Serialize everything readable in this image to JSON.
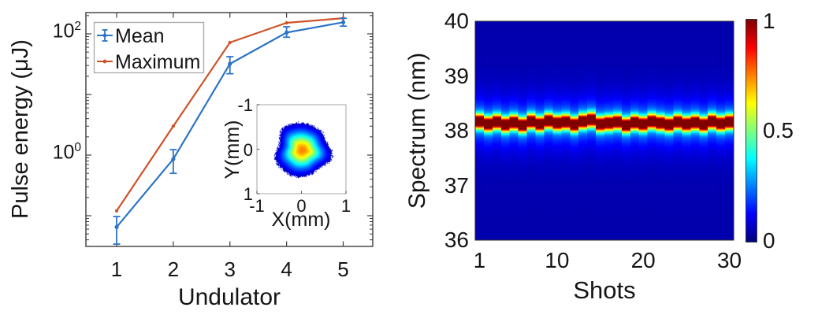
{
  "page": {
    "background": "#ffffff"
  },
  "left_plot": {
    "xlabel": "Undulator",
    "ylabel": "Pulse energy (μJ)",
    "axis_color": "#3c3c3c",
    "legend": {
      "border_color": "#a8a8a8"
    }
  },
  "inset_plot": {
    "xlabel": "X(mm)",
    "ylabel": "Y(mm)",
    "frame_color": "#b3b3b3"
  },
  "right_plot": {
    "xlabel": "Shots",
    "ylabel": "Spectrum (nm)"
  },
  "chart_data": [
    {
      "id": "pulse-energy-vs-undulator",
      "type": "line",
      "xlabel": "Undulator",
      "ylabel": "Pulse energy (μJ)",
      "yscale": "log",
      "xlim": [
        0.46,
        5.52
      ],
      "ylim": [
        0.031,
        224
      ],
      "x": [
        1,
        2,
        3,
        4,
        5
      ],
      "x_ticks": [
        "1",
        "2",
        "3",
        "4",
        "5"
      ],
      "y_major_ticks_labeled": [
        {
          "base": "10",
          "exp": "0",
          "value": 1
        },
        {
          "base": "10",
          "exp": "2",
          "value": 100
        }
      ],
      "grid": false,
      "legend_position": "top-left",
      "series": [
        {
          "name": "Maximum",
          "color": "#CE5328",
          "marker": "dot",
          "values": [
            0.12,
            3.0,
            72,
            152,
            181
          ]
        },
        {
          "name": "Mean",
          "color": "#2E74C4",
          "marker": "errorbar-dot",
          "values": [
            0.065,
            0.86,
            32,
            105,
            155
          ],
          "err_lo": [
            0.034,
            0.5,
            22,
            88,
            134
          ],
          "err_hi": [
            0.097,
            1.23,
            42,
            131,
            181
          ]
        }
      ]
    },
    {
      "id": "beam-profile-inset",
      "type": "heatmap",
      "xlabel": "X(mm)",
      "ylabel": "Y(mm)",
      "xlim": [
        -1,
        1
      ],
      "ylim_top_to_bottom": [
        -1,
        1
      ],
      "x_ticks": [
        "-1",
        "0",
        "1"
      ],
      "y_ticks": [
        "-1",
        "0",
        "1"
      ],
      "colormap": "jet",
      "background": "#ffffff",
      "beam": {
        "center_x_mm": 0.02,
        "center_y_mm": 0.02,
        "sigma_mm": 0.28,
        "peak_value": 0.75,
        "cutoff": 0.065
      }
    },
    {
      "id": "spectrum-vs-shots",
      "type": "heatmap",
      "xlabel": "Shots",
      "ylabel": "Spectrum (nm)",
      "xlim": [
        1,
        30
      ],
      "ylim": [
        36,
        40
      ],
      "x_ticks": [
        "1",
        "10",
        "20",
        "30"
      ],
      "x_tick_values": [
        1,
        10,
        20,
        30
      ],
      "y_ticks": [
        "40",
        "39",
        "38",
        "37",
        "36"
      ],
      "y_tick_values": [
        40,
        39,
        38,
        37,
        36
      ],
      "colormap": "jet",
      "n_shots": 30,
      "background_level": 0.045,
      "band": {
        "sigma_nm": 0.085,
        "pedestals": [
          {
            "amp": 0.18,
            "sigma_nm": 0.2
          },
          {
            "amp": 0.1,
            "sigma_nm": 0.42
          }
        ],
        "centers_nm": [
          38.17,
          38.12,
          38.16,
          38.11,
          38.15,
          38.1,
          38.17,
          38.12,
          38.18,
          38.14,
          38.16,
          38.11,
          38.17,
          38.2,
          38.12,
          38.14,
          38.16,
          38.1,
          38.15,
          38.12,
          38.17,
          38.14,
          38.11,
          38.16,
          38.12,
          38.15,
          38.11,
          38.17,
          38.13,
          38.16
        ]
      },
      "colorbar": {
        "position": "right",
        "ticks": [
          {
            "label": "1",
            "value": 1
          },
          {
            "label": "0.5",
            "value": 0.5
          },
          {
            "label": "0",
            "value": 0
          }
        ]
      }
    }
  ]
}
